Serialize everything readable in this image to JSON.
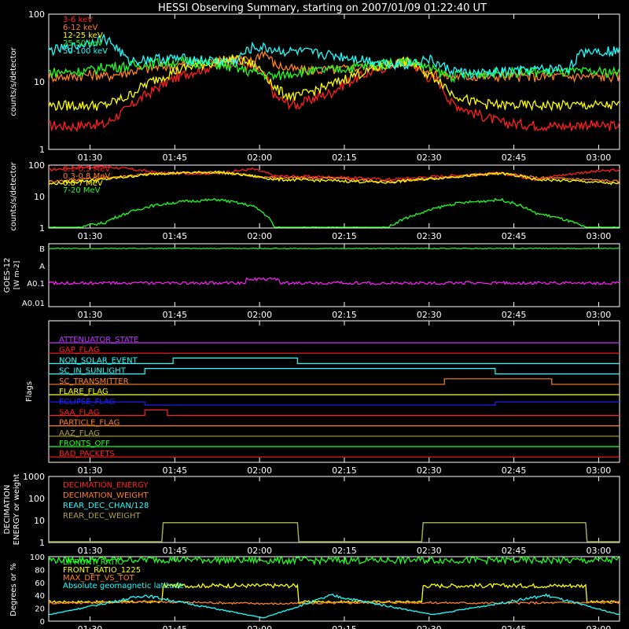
{
  "title": "HESSI Observing Summary, starting on 2007/01/09 01:22:40 UT",
  "x_ticks": [
    "01:30",
    "01:45",
    "02:00",
    "02:15",
    "02:30",
    "02:45",
    "03:00"
  ],
  "colors": {
    "red": "#ff2020",
    "orange": "#ff8020",
    "yellow": "#ffff00",
    "green": "#20ff20",
    "cyan": "#20ffff",
    "magenta": "#ff20ff",
    "blue": "#2020ff",
    "olive": "#b0a040",
    "purple": "#c030ff",
    "white": "#ffffff"
  },
  "chart_data": [
    {
      "type": "line",
      "panel": "lightcurves_low",
      "ylabel": "counts/s/detector",
      "yscale": "log",
      "ylim": [
        1,
        100
      ],
      "y_tick_labels": [
        "1",
        "10",
        "100"
      ],
      "legend": [
        "3-6 keV",
        "6-12 keV",
        "12-25 keV",
        "25-50 keV",
        "50-100 keV"
      ],
      "series": [
        {
          "name": "3-6 keV",
          "color": "red",
          "x": [
            0,
            4,
            8,
            10,
            14,
            18,
            24,
            30,
            33,
            36,
            38,
            40,
            42,
            44,
            50,
            58,
            63,
            65,
            67,
            69,
            71,
            75,
            80,
            86,
            92,
            95,
            98,
            101
          ],
          "y": [
            2.3,
            2.2,
            2.4,
            2.3,
            4,
            7,
            13,
            18,
            20,
            16,
            13,
            6,
            5,
            4.5,
            7,
            15,
            20,
            17,
            12,
            10,
            5,
            3.5,
            2.5,
            2.3,
            2.2,
            2.4,
            2.2,
            2.3
          ]
        },
        {
          "name": "6-12 keV",
          "color": "orange",
          "x": [
            0,
            4,
            8,
            10,
            14,
            18,
            24,
            30,
            33,
            36,
            38,
            40,
            42,
            44,
            50,
            58,
            63,
            65,
            67,
            69,
            71,
            75,
            80,
            86,
            92,
            95,
            98,
            101
          ],
          "y": [
            12,
            12,
            13,
            12,
            14,
            16,
            18,
            20,
            22,
            20,
            28,
            18,
            16,
            15,
            15,
            17,
            20,
            18,
            14,
            13,
            12,
            12,
            12,
            12,
            12,
            12,
            12,
            12
          ]
        },
        {
          "name": "12-25 keV",
          "color": "yellow",
          "x": [
            0,
            4,
            8,
            10,
            14,
            18,
            24,
            30,
            33,
            36,
            38,
            40,
            42,
            44,
            50,
            58,
            63,
            65,
            67,
            69,
            71,
            75,
            80,
            86,
            92,
            95,
            98,
            101
          ],
          "y": [
            4.5,
            4.5,
            4.5,
            4.5,
            6,
            10,
            16,
            20,
            22,
            18,
            14,
            8,
            6.5,
            6,
            9,
            16,
            20,
            18,
            13,
            11,
            7,
            5,
            4.5,
            4.5,
            4.5,
            4.5,
            4.5,
            4.5
          ]
        },
        {
          "name": "25-50 keV",
          "color": "green",
          "x": [
            0,
            4,
            8,
            10,
            14,
            18,
            24,
            30,
            33,
            36,
            38,
            40,
            42,
            44,
            50,
            58,
            63,
            65,
            67,
            69,
            71,
            75,
            80,
            86,
            92,
            95,
            98,
            101
          ],
          "y": [
            14,
            14,
            15,
            17,
            17,
            19,
            20,
            18,
            16,
            14,
            13,
            12,
            13,
            14,
            15,
            18,
            20,
            19,
            16,
            14,
            12,
            13,
            14,
            14,
            14,
            14,
            14,
            14
          ]
        },
        {
          "name": "50-100 keV",
          "color": "cyan",
          "x": [
            0,
            4,
            8,
            10,
            14,
            18,
            24,
            30,
            33,
            36,
            38,
            40,
            42,
            44,
            50,
            58,
            63,
            65,
            67,
            69,
            71,
            75,
            80,
            86,
            92,
            95,
            98,
            101
          ],
          "y": [
            29,
            32,
            40,
            44,
            20,
            22,
            22,
            20,
            20,
            32,
            32,
            30,
            28,
            28,
            25,
            20,
            18,
            20,
            22,
            18,
            15,
            13,
            14,
            15,
            16,
            29,
            29,
            29
          ]
        }
      ]
    },
    {
      "type": "line",
      "panel": "lightcurves_high",
      "ylabel": "counts/s/detector",
      "yscale": "log",
      "ylim": [
        1,
        100
      ],
      "y_tick_labels": [
        "1",
        "10",
        "100"
      ],
      "legend": [
        "0.1-0.3 MeV",
        "0.3-0.8 MeV",
        "0.8-7 MeV",
        "7-20 MeV"
      ],
      "series": [
        {
          "name": "0.1-0.3 MeV",
          "color": "red",
          "x": [
            0,
            5,
            10,
            20,
            30,
            36,
            40,
            50,
            60,
            70,
            80,
            86,
            95,
            101
          ],
          "y": [
            70,
            85,
            90,
            55,
            55,
            75,
            45,
            42,
            35,
            45,
            55,
            35,
            60,
            70
          ]
        },
        {
          "name": "0.3-0.8 MeV",
          "color": "orange",
          "x": [
            0,
            5,
            10,
            20,
            30,
            36,
            40,
            50,
            60,
            70,
            80,
            86,
            95,
            101
          ],
          "y": [
            30,
            35,
            40,
            55,
            60,
            45,
            40,
            38,
            30,
            40,
            55,
            40,
            35,
            30
          ]
        },
        {
          "name": "0.8-7 MeV",
          "color": "yellow",
          "x": [
            0,
            5,
            10,
            20,
            30,
            36,
            40,
            50,
            60,
            70,
            80,
            86,
            95,
            101
          ],
          "y": [
            25,
            30,
            35,
            55,
            60,
            45,
            35,
            32,
            28,
            40,
            55,
            35,
            30,
            25
          ]
        },
        {
          "name": "7-20 MeV",
          "color": "green",
          "x": [
            0,
            5,
            10,
            14,
            18,
            24,
            30,
            36,
            40,
            50,
            60,
            66,
            72,
            80,
            86,
            95,
            101
          ],
          "y": [
            1,
            1,
            1.5,
            3,
            5,
            7,
            8,
            5,
            1,
            1,
            1,
            3,
            6,
            8,
            3,
            1,
            1
          ]
        }
      ]
    },
    {
      "type": "line",
      "panel": "goes",
      "ylabel": "GOES-12 [W m-2]",
      "y_tick_labels": [
        "B",
        "A",
        "A0.1",
        "A0.01"
      ],
      "series": [
        {
          "name": "1-8 A",
          "color": "green",
          "x": [
            0,
            50,
            55,
            100
          ],
          "y": [
            "B",
            "B",
            "B",
            "B"
          ]
        },
        {
          "name": "0.5-4 A",
          "color": "magenta",
          "x": [
            0,
            34,
            35,
            40,
            41,
            100
          ],
          "y": [
            "A0.1",
            "A0.1",
            "A0.1+",
            "A0.1+",
            "A0.1",
            "A0.1"
          ]
        }
      ]
    },
    {
      "type": "table",
      "panel": "flags",
      "ylabel": "Flags",
      "flags": [
        {
          "name": "ATTENUATOR_STATE",
          "color": "purple"
        },
        {
          "name": "GAP_FLAG",
          "color": "red"
        },
        {
          "name": "NON_SOLAR_EVENT",
          "color": "cyan"
        },
        {
          "name": "SC_IN_SUNLIGHT",
          "color": "cyan"
        },
        {
          "name": "SC_TRANSMITTER",
          "color": "orange"
        },
        {
          "name": "FLARE_FLAG",
          "color": "yellow"
        },
        {
          "name": "ECLIPSE_FLAG",
          "color": "blue"
        },
        {
          "name": "SAA_FLAG",
          "color": "red"
        },
        {
          "name": "PARTICLE_FLAG",
          "color": "orange"
        },
        {
          "name": "AAZ_FLAG",
          "color": "olive"
        },
        {
          "name": "FRONTS_OFF",
          "color": "green"
        },
        {
          "name": "BAD_PACKETS",
          "color": "red"
        }
      ]
    },
    {
      "type": "line",
      "panel": "decimation",
      "ylabel": "DECIMATION ENERGY or weight",
      "yscale": "log",
      "ylim": [
        1,
        1000
      ],
      "y_tick_labels": [
        "1",
        "10",
        "100",
        "1000"
      ],
      "legend": [
        "DECIMATION_ENERGY",
        "DECIMATION_WEIGHT",
        "REAR_DEC_CHAN/128",
        "REAR_DEC_WEIGHT"
      ],
      "series": [
        {
          "name": "REAR_DEC_CHAN/128",
          "color": "cyan",
          "x": [
            0,
            20,
            20,
            44,
            44,
            66,
            66,
            95,
            95,
            101
          ],
          "y": [
            1,
            1,
            8,
            8,
            1,
            1,
            8,
            8,
            1,
            1
          ]
        },
        {
          "name": "REAR_DEC_WEIGHT",
          "color": "olive",
          "x": [
            0,
            20,
            20,
            44,
            44,
            66,
            66,
            95,
            95,
            101
          ],
          "y": [
            1,
            1,
            8,
            8,
            1,
            1,
            8,
            8,
            1,
            1
          ]
        }
      ]
    },
    {
      "type": "line",
      "panel": "ratios",
      "ylabel": "Degrees or %",
      "ylim": [
        0,
        100
      ],
      "y_tick_labels": [
        "0",
        "20",
        "40",
        "60",
        "80",
        "100"
      ],
      "legend": [
        "LIFRONT_RATIO",
        "FRONT_RATIO_1225",
        "MAX_DET_VS_TOT",
        "Absolute geomagnetic latitude"
      ],
      "series": [
        {
          "name": "FRONT_RATIO_1225",
          "color": "yellow",
          "x": [
            0,
            20,
            20,
            44,
            44,
            66,
            66,
            95,
            95,
            101
          ],
          "y": [
            30,
            30,
            55,
            55,
            30,
            30,
            55,
            55,
            30,
            30
          ]
        },
        {
          "name": "MAX_DET_VS_TOT",
          "color": "orange",
          "x": [
            0,
            20,
            40,
            60,
            80,
            101
          ],
          "y": [
            28,
            30,
            27,
            29,
            28,
            29
          ]
        },
        {
          "name": "LIFRONT_RATIO",
          "color": "green",
          "x": [
            0,
            20,
            44,
            66,
            95,
            101
          ],
          "y": [
            95,
            96,
            94,
            95,
            94,
            95
          ]
        },
        {
          "name": "Absolute geomagnetic latitude",
          "color": "cyan",
          "x": [
            0,
            17,
            38,
            50,
            68,
            88,
            101
          ],
          "y": [
            10,
            40,
            5,
            40,
            10,
            40,
            10
          ]
        }
      ]
    }
  ]
}
